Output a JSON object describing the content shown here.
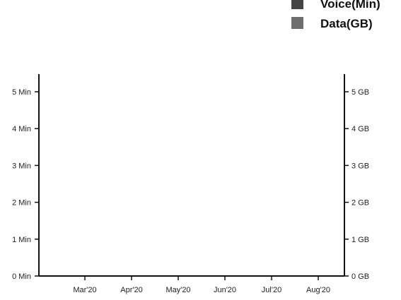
{
  "chart_data": {
    "type": "bar",
    "categories": [
      "Mar'20",
      "Apr'20",
      "May'20",
      "Jun'20",
      "Jul'20",
      "Aug'20"
    ],
    "series": [
      {
        "name": "Voice(Min)",
        "axis": "left",
        "color": "#444444",
        "values": [
          0,
          0,
          0,
          0,
          0,
          0
        ]
      },
      {
        "name": "Data(GB)",
        "axis": "right",
        "color": "#6e6e6e",
        "values": [
          0,
          0,
          0,
          0,
          0,
          0
        ]
      }
    ],
    "left_axis": {
      "ylim": [
        0,
        5
      ],
      "ticks": [
        0,
        1,
        2,
        3,
        4,
        5
      ],
      "tick_labels": [
        "0 Min",
        "1 Min",
        "2 Min",
        "3 Min",
        "4 Min",
        "5 Min"
      ]
    },
    "right_axis": {
      "ylim": [
        0,
        5
      ],
      "ticks": [
        0,
        1,
        2,
        3,
        4,
        5
      ],
      "tick_labels": [
        "0 GB",
        "1 GB",
        "2 GB",
        "3 GB",
        "4 GB",
        "5 GB"
      ]
    },
    "grid": false,
    "legend_position": "top-right"
  }
}
